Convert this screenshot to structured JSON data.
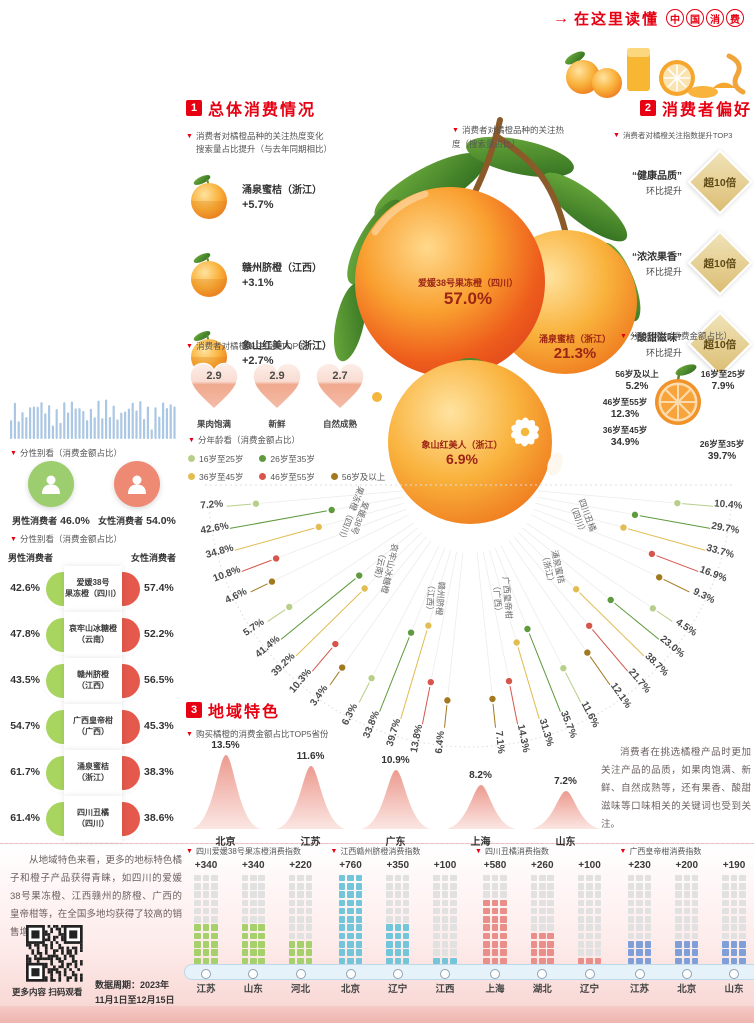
{
  "icons": {
    "marker": "▼",
    "arrow": "→"
  },
  "accent": {
    "red": "#e60012",
    "label_red": "#9c2415"
  },
  "header": {
    "prefix": "在这里读懂",
    "circled": "中国消费"
  },
  "sections": {
    "s1": {
      "num": "1",
      "title": "总体消费情况"
    },
    "s2": {
      "num": "2",
      "title": "消费者偏好"
    },
    "s3": {
      "num": "3",
      "title": "地域特色"
    }
  },
  "chart_data": [
    {
      "id": "search_heat_change",
      "type": "table",
      "title": "消费者对橘橙品种的关注热度变化",
      "subtitle": "搜索量占比提升（与去年同期相比）",
      "items": [
        {
          "name": "涌泉蜜桔（浙江）",
          "value": "+5.7%"
        },
        {
          "name": "赣州脐橙（江西）",
          "value": "+3.1%"
        },
        {
          "name": "象山红美人（浙江）",
          "value": "+2.7%"
        }
      ]
    },
    {
      "id": "attention_index_top3",
      "type": "pictogram",
      "title": "消费者对橘橙关注指数TOP3",
      "items": [
        {
          "label": "果肉饱满",
          "value": "2.9"
        },
        {
          "label": "新鲜",
          "value": "2.9"
        },
        {
          "label": "自然成熟",
          "value": "2.7"
        }
      ]
    },
    {
      "id": "search_share_by_variety",
      "type": "table",
      "title": "消费者对橘橙品种的关注热度（搜索量占比）",
      "items": [
        {
          "name": "爱媛38号果冻橙（四川）",
          "value": "57.0%"
        },
        {
          "name": "涌泉蜜桔（浙江）",
          "value": "21.3%"
        },
        {
          "name": "象山红美人（浙江）",
          "value": "6.9%"
        }
      ]
    },
    {
      "id": "preference_lift_top3",
      "type": "table",
      "title": "消费者对橘橙关注指数提升TOP3",
      "items": [
        {
          "keyword": "“健康品质”",
          "label": "环比提升",
          "badge": "超10倍"
        },
        {
          "keyword": "“浓浓果香”",
          "label": "环比提升",
          "badge": "超10倍"
        },
        {
          "keyword": "“酸甜滋味”",
          "label": "环比提升",
          "badge": "超10倍"
        }
      ]
    },
    {
      "id": "age_share_overall",
      "type": "pie",
      "title": "分年龄看（消费金额占比）",
      "labels": [
        "16岁至25岁",
        "26岁至35岁",
        "36岁至45岁",
        "46岁至55岁",
        "56岁及以上"
      ],
      "values": [
        7.9,
        39.7,
        34.9,
        12.3,
        5.2
      ]
    },
    {
      "id": "gender_share_overall",
      "type": "pictogram",
      "title": "分性别看（消费金额占比）",
      "items": [
        {
          "label": "男性消费者",
          "value": "46.0%",
          "color": "#9ccd6e"
        },
        {
          "label": "女性消费者",
          "value": "54.0%",
          "color": "#ee8a74"
        }
      ]
    },
    {
      "id": "gender_share_by_variety",
      "type": "paired-bar",
      "title": "分性别看（消费金额占比）",
      "col_left": "男性消费者",
      "col_right": "女性消费者",
      "male_color": "#a8d55f",
      "female_color": "#e4594b",
      "rows": [
        {
          "name": [
            "爱媛38号",
            "果冻橙（四川）"
          ],
          "male": "42.6%",
          "female": "57.4%"
        },
        {
          "name": [
            "哀牢山冰糖橙",
            "（云南）"
          ],
          "male": "47.8%",
          "female": "52.2%"
        },
        {
          "name": [
            "赣州脐橙",
            "（江西）"
          ],
          "male": "43.5%",
          "female": "56.5%"
        },
        {
          "name": [
            "广西皇帝柑",
            "（广西）"
          ],
          "male": "54.7%",
          "female": "45.3%"
        },
        {
          "name": [
            "涌泉蜜桔",
            "（浙江）"
          ],
          "male": "61.7%",
          "female": "38.3%"
        },
        {
          "name": [
            "四川丑橘",
            "（四川）"
          ],
          "male": "61.4%",
          "female": "38.6%"
        }
      ]
    },
    {
      "id": "age_share_by_variety_fan",
      "type": "radial-fan",
      "title": "分年龄看（消费金额占比）",
      "legend": [
        {
          "label": "16岁至25岁",
          "color": "#b7cf8a"
        },
        {
          "label": "26岁至35岁",
          "color": "#5f9a3e"
        },
        {
          "label": "36岁至45岁",
          "color": "#e2bd52"
        },
        {
          "label": "46岁至55岁",
          "color": "#d6554c"
        },
        {
          "label": "56岁及以上",
          "color": "#a3791f"
        }
      ],
      "groups": [
        {
          "name": [
            "爱媛38号",
            "果冻橙（四川）"
          ],
          "values": [
            7.2,
            42.6,
            34.8,
            10.8,
            4.6
          ]
        },
        {
          "name": [
            "哀牢山冰糖橙",
            "（云南）"
          ],
          "values": [
            5.7,
            41.4,
            39.2,
            10.3,
            3.4
          ]
        },
        {
          "name": [
            "赣州脐橙",
            "（江西）"
          ],
          "values": [
            6.3,
            33.8,
            39.7,
            13.8,
            6.4
          ]
        },
        {
          "name": [
            "广西皇帝柑",
            "（广西）"
          ],
          "values": [
            11.6,
            35.7,
            31.3,
            14.3,
            7.1
          ]
        },
        {
          "name": [
            "涌泉蜜桔",
            "（浙江）"
          ],
          "values": [
            4.5,
            23.0,
            38.7,
            21.7,
            12.1
          ]
        },
        {
          "name": [
            "四川丑橘",
            "（四川）"
          ],
          "values": [
            10.4,
            29.7,
            33.7,
            16.9,
            9.3
          ]
        }
      ]
    },
    {
      "id": "region_top5",
      "type": "area",
      "title": "购买橘橙的消费金额占比TOP5省份",
      "categories": [
        "北京",
        "江苏",
        "广东",
        "上海",
        "山东"
      ],
      "values": [
        13.5,
        11.6,
        10.9,
        8.2,
        7.2
      ],
      "labels": [
        "13.5%",
        "11.6%",
        "10.9%",
        "8.2%",
        "7.2%"
      ]
    },
    {
      "id": "consumption_index",
      "type": "bar",
      "max_value": 760,
      "groups": [
        {
          "title": "四川爱媛38号果冻橙消费指数",
          "color": "#a5d06b",
          "bars": [
            {
              "province": "江苏",
              "value": 340,
              "label": "+340"
            },
            {
              "province": "山东",
              "value": 340,
              "label": "+340"
            },
            {
              "province": "河北",
              "value": 220,
              "label": "+220"
            }
          ]
        },
        {
          "title": "江西赣州脐橙消费指数",
          "color": "#73c5da",
          "bars": [
            {
              "province": "北京",
              "value": 760,
              "label": "+760"
            },
            {
              "province": "辽宁",
              "value": 350,
              "label": "+350"
            },
            {
              "province": "江西",
              "value": 100,
              "label": "+100"
            }
          ]
        },
        {
          "title": "四川丑橘消费指数",
          "color": "#e98e88",
          "bars": [
            {
              "province": "上海",
              "value": 580,
              "label": "+580"
            },
            {
              "province": "湖北",
              "value": 260,
              "label": "+260"
            },
            {
              "province": "辽宁",
              "value": 100,
              "label": "+100"
            }
          ]
        },
        {
          "title": "广西皇帝柑消费指数",
          "color": "#7e9fd7",
          "bars": [
            {
              "province": "江苏",
              "value": 230,
              "label": "+230"
            },
            {
              "province": "北京",
              "value": 200,
              "label": "+200"
            },
            {
              "province": "山东",
              "value": 190,
              "label": "+190"
            }
          ]
        }
      ]
    }
  ],
  "notes": {
    "right": "消费者在挑选橘橙产品时更加关注产品的品质，如果肉饱满、新鲜、自然成熟等，还有果香、酸甜滋味等口味相关的关键词也受到关注。",
    "left": "从地域特色来看，更多的地标特色橘子和橙子产品获得青睐，如四川的爱媛38号果冻橙、江西赣州的脐橙、广西的皇帝柑等，在全国多地均获得了较高的销售增长。"
  },
  "footer": {
    "qr_caption": "更多内容 扫码观看",
    "period_line1": "数据周期：2023年",
    "period_line2": "11月1日至12月15日"
  }
}
